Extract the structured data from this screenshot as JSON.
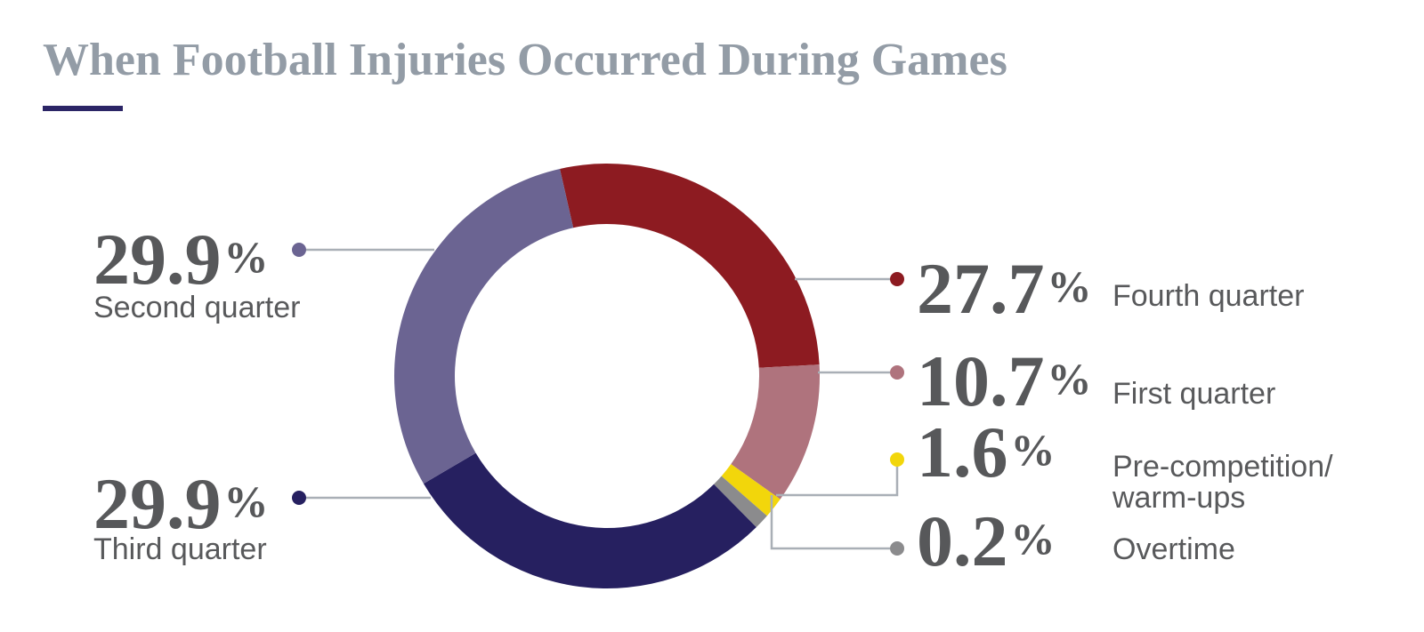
{
  "title": "When Football Injuries Occurred During Games",
  "theme": {
    "background": "#FFFFFF",
    "title_color": "#939CA6",
    "accent_bar_color": "#2B2566",
    "number_color": "#57585A",
    "label_color": "#58595B",
    "leader_line_color": "#A9AFB6"
  },
  "chart_data": {
    "type": "pie",
    "subtype": "donut",
    "title": "When Football Injuries Occurred During Games",
    "unit": "%",
    "start_angle_deg": -12.8,
    "donut_hole_ratio": 0.715,
    "legend_position": "callouts",
    "segments": [
      {
        "label": "Fourth quarter",
        "value": 27.7,
        "color": "#8D1B21"
      },
      {
        "label": "First quarter",
        "value": 10.7,
        "color": "#AF737D"
      },
      {
        "label": "Pre-competition/warm-ups",
        "value": 1.6,
        "color": "#F2D60B"
      },
      {
        "label": "Overtime",
        "value": 0.2,
        "color": "#8B8B8D"
      },
      {
        "label": "Third quarter",
        "value": 29.9,
        "color": "#262060"
      },
      {
        "label": "Second quarter",
        "value": 29.9,
        "color": "#6B6492"
      }
    ]
  },
  "callouts": {
    "left": [
      {
        "value": "29.9",
        "unit": "%",
        "label": "Second quarter"
      },
      {
        "value": "29.9",
        "unit": "%",
        "label": "Third quarter"
      }
    ],
    "right": [
      {
        "value": "27.7",
        "unit": "%",
        "label": "Fourth quarter"
      },
      {
        "value": "10.7",
        "unit": "%",
        "label": "First quarter"
      },
      {
        "value": "1.6",
        "unit": "%",
        "label": "Pre-competition/",
        "label2": "warm-ups"
      },
      {
        "value": "0.2",
        "unit": "%",
        "label": "Overtime"
      }
    ]
  }
}
